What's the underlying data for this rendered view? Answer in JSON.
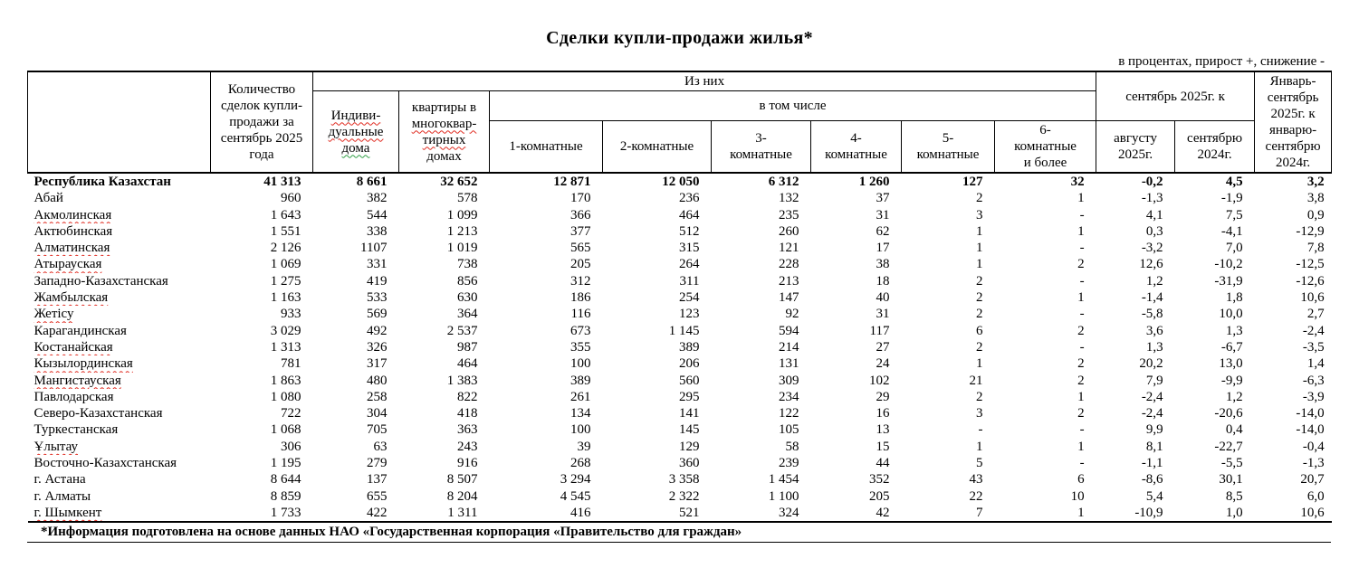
{
  "page": {
    "title": "Сделки купли-продажи жилья*",
    "units_note": "в процентах, прирост +, снижение -",
    "footnote": "*Информация подготовлена на основе данных НАО «Государственная корпорация «Правительство для граждан»"
  },
  "table": {
    "header": {
      "qty": "Количество\nсделок купли-\nпродажи за\nсентябрь 2025\nгода",
      "group_of_them": "Из них",
      "col_indiv_wavy": "Индиви-дуальные",
      "col_indiv_bottom": "дома",
      "col_apart_top": "квартиры в",
      "col_apart_wavy": "многоквар-тирных",
      "col_apart_bottom": "домах",
      "group_including": "в том числе",
      "rooms": [
        "1-комнатные",
        "2-комнатные",
        "3-\nкомнатные",
        "4-\nкомнатные",
        "5-\nкомнатные",
        "6-\nкомнатные\nи более"
      ],
      "group_sep2025_to": "сентябрь 2025г. к",
      "col_aug2025": "августу\n2025г.",
      "col_sep2024": "сентябрю\n2024г.",
      "col_jan_sep": "Январь-\nсентябрь\n2025г. к\nянварю-\nсентябрю\n2024г."
    },
    "rows": [
      {
        "region": "Республика Казахстан",
        "bold": true,
        "wavy": false,
        "values": [
          "41 313",
          "8 661",
          "32 652",
          "12 871",
          "12 050",
          "6 312",
          "1 260",
          "127",
          "32",
          "-0,2",
          "4,5",
          "3,2"
        ]
      },
      {
        "region": "Абай",
        "bold": false,
        "wavy": false,
        "values": [
          "960",
          "382",
          "578",
          "170",
          "236",
          "132",
          "37",
          "2",
          "1",
          "-1,3",
          "-1,9",
          "3,8"
        ]
      },
      {
        "region": "Акмолинская",
        "bold": false,
        "wavy": true,
        "values": [
          "1 643",
          "544",
          "1 099",
          "366",
          "464",
          "235",
          "31",
          "3",
          "-",
          "4,1",
          "7,5",
          "0,9"
        ]
      },
      {
        "region": "Актюбинская",
        "bold": false,
        "wavy": false,
        "values": [
          "1 551",
          "338",
          "1 213",
          "377",
          "512",
          "260",
          "62",
          "1",
          "1",
          "0,3",
          "-4,1",
          "-12,9"
        ]
      },
      {
        "region": "Алматинская",
        "bold": false,
        "wavy": true,
        "values": [
          "2 126",
          "1107",
          "1 019",
          "565",
          "315",
          "121",
          "17",
          "1",
          "-",
          "-3,2",
          "7,0",
          "7,8"
        ]
      },
      {
        "region": "Атырауская",
        "bold": false,
        "wavy": true,
        "values": [
          "1 069",
          "331",
          "738",
          "205",
          "264",
          "228",
          "38",
          "1",
          "2",
          "12,6",
          "-10,2",
          "-12,5"
        ]
      },
      {
        "region": "Западно-Казахстанская",
        "bold": false,
        "wavy": false,
        "values": [
          "1 275",
          "419",
          "856",
          "312",
          "311",
          "213",
          "18",
          "2",
          "-",
          "1,2",
          "-31,9",
          "-12,6"
        ]
      },
      {
        "region": "Жамбылская",
        "bold": false,
        "wavy": true,
        "values": [
          "1 163",
          "533",
          "630",
          "186",
          "254",
          "147",
          "40",
          "2",
          "1",
          "-1,4",
          "1,8",
          "10,6"
        ]
      },
      {
        "region": "Жетісу",
        "bold": false,
        "wavy": true,
        "values": [
          "933",
          "569",
          "364",
          "116",
          "123",
          "92",
          "31",
          "2",
          "-",
          "-5,8",
          "10,0",
          "2,7"
        ]
      },
      {
        "region": "Карагандинская",
        "bold": false,
        "wavy": false,
        "values": [
          "3 029",
          "492",
          "2 537",
          "673",
          "1 145",
          "594",
          "117",
          "6",
          "2",
          "3,6",
          "1,3",
          "-2,4"
        ]
      },
      {
        "region": "Костанайская",
        "bold": false,
        "wavy": true,
        "values": [
          "1 313",
          "326",
          "987",
          "355",
          "389",
          "214",
          "27",
          "2",
          "-",
          "1,3",
          "-6,7",
          "-3,5"
        ]
      },
      {
        "region": "Кызылординская",
        "bold": false,
        "wavy": true,
        "values": [
          "781",
          "317",
          "464",
          "100",
          "206",
          "131",
          "24",
          "1",
          "2",
          "20,2",
          "13,0",
          "1,4"
        ]
      },
      {
        "region": "Мангистауская",
        "bold": false,
        "wavy": true,
        "values": [
          "1 863",
          "480",
          "1 383",
          "389",
          "560",
          "309",
          "102",
          "21",
          "2",
          "7,9",
          "-9,9",
          "-6,3"
        ]
      },
      {
        "region": "Павлодарская",
        "bold": false,
        "wavy": false,
        "values": [
          "1 080",
          "258",
          "822",
          "261",
          "295",
          "234",
          "29",
          "2",
          "1",
          "-2,4",
          "1,2",
          "-3,9"
        ]
      },
      {
        "region": "Северо-Казахстанская",
        "bold": false,
        "wavy": false,
        "values": [
          "722",
          "304",
          "418",
          "134",
          "141",
          "122",
          "16",
          "3",
          "2",
          "-2,4",
          "-20,6",
          "-14,0"
        ]
      },
      {
        "region": "Туркестанская",
        "bold": false,
        "wavy": false,
        "values": [
          "1 068",
          "705",
          "363",
          "100",
          "145",
          "105",
          "13",
          "-",
          "-",
          "9,9",
          "0,4",
          "-14,0"
        ]
      },
      {
        "region": "Ұлытау",
        "bold": false,
        "wavy": true,
        "values": [
          "306",
          "63",
          "243",
          "39",
          "129",
          "58",
          "15",
          "1",
          "1",
          "8,1",
          "-22,7",
          "-0,4"
        ]
      },
      {
        "region": "Восточно-Казахстанская",
        "bold": false,
        "wavy": false,
        "values": [
          "1 195",
          "279",
          "916",
          "268",
          "360",
          "239",
          "44",
          "5",
          "-",
          "-1,1",
          "-5,5",
          "-1,3"
        ]
      },
      {
        "region": "г. Астана",
        "bold": false,
        "wavy": false,
        "values": [
          "8 644",
          "137",
          "8 507",
          "3 294",
          "3 358",
          "1 454",
          "352",
          "43",
          "6",
          "-8,6",
          "30,1",
          "20,7"
        ]
      },
      {
        "region": "г. Алматы",
        "bold": false,
        "wavy": false,
        "values": [
          "8 859",
          "655",
          "8 204",
          "4 545",
          "2 322",
          "1 100",
          "205",
          "22",
          "10",
          "5,4",
          "8,5",
          "6,0"
        ]
      },
      {
        "region": "г. Шымкент",
        "bold": false,
        "wavy": true,
        "values": [
          "1 733",
          "422",
          "1 311",
          "416",
          "521",
          "324",
          "42",
          "7",
          "1",
          "-10,9",
          "1,0",
          "10,6"
        ]
      }
    ]
  }
}
